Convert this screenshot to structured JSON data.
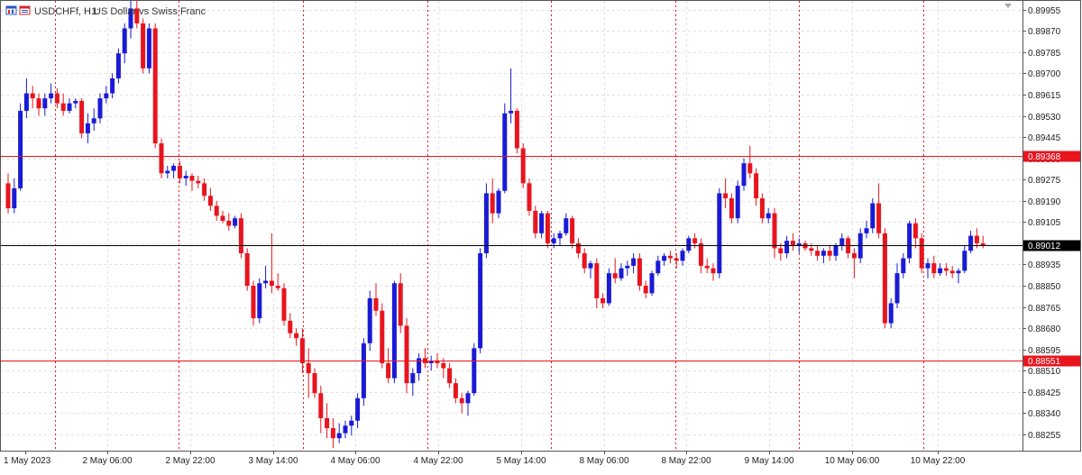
{
  "window": {
    "symbol_label": "USDCHFf, H1:",
    "description": "US Dollar vs Swiss Franc",
    "icon": "chart-window-icon"
  },
  "chart_data": {
    "type": "candlestick",
    "title": "USDCHFf, H1:  US Dollar vs Swiss Franc",
    "timeframe": "H1",
    "grid": true,
    "up_color": "#1a1ad6",
    "down_color": "#e8141e",
    "price_ticks": [
      "0.89955",
      "0.89870",
      "0.89785",
      "0.89700",
      "0.89615",
      "0.89530",
      "0.89445",
      "0.89360",
      "0.89275",
      "0.89190",
      "0.89105",
      "0.89020",
      "0.88935",
      "0.88850",
      "0.88765",
      "0.88680",
      "0.88595",
      "0.88510",
      "0.88425",
      "0.88340",
      "0.88255"
    ],
    "ylim": [
      0.8819,
      0.8999
    ],
    "time_labels": [
      "1 May 2023",
      "2 May 06:00",
      "2 May 22:00",
      "3 May 14:00",
      "4 May 06:00",
      "4 May 22:00",
      "5 May 14:00",
      "8 May 06:00",
      "8 May 22:00",
      "9 May 14:00",
      "10 May 06:00",
      "10 May 22:00"
    ],
    "session_separators": [
      "2 May",
      "3 May",
      "4 May",
      "5 May",
      "8 May",
      "9 May",
      "10 May",
      "11 May"
    ],
    "hlines": [
      {
        "value": 0.89368,
        "label": "0.89368",
        "color": "#e8141e",
        "label_bg": "#e8141e",
        "label_color": "#ffffff"
      },
      {
        "value": 0.89012,
        "label": "0.89012",
        "color": "#000000",
        "label_bg": "#000000",
        "label_color": "#ffffff"
      },
      {
        "value": 0.88551,
        "label": "0.88551",
        "color": "#e8141e",
        "label_bg": "#e8141e",
        "label_color": "#ffffff"
      }
    ],
    "candles": [
      [
        0.8926,
        0.893,
        0.8914,
        0.8916
      ],
      [
        0.8916,
        0.8928,
        0.8914,
        0.8924
      ],
      [
        0.8924,
        0.8958,
        0.8923,
        0.8955
      ],
      [
        0.8955,
        0.8968,
        0.8952,
        0.8962
      ],
      [
        0.8962,
        0.8965,
        0.8956,
        0.896
      ],
      [
        0.896,
        0.8962,
        0.8953,
        0.8956
      ],
      [
        0.8956,
        0.8962,
        0.8953,
        0.896
      ],
      [
        0.896,
        0.8966,
        0.8958,
        0.8962
      ],
      [
        0.8962,
        0.8964,
        0.8956,
        0.8958
      ],
      [
        0.8958,
        0.8962,
        0.8953,
        0.8955
      ],
      [
        0.8955,
        0.896,
        0.8954,
        0.8958
      ],
      [
        0.8958,
        0.896,
        0.8956,
        0.8959
      ],
      [
        0.8959,
        0.896,
        0.8944,
        0.8946
      ],
      [
        0.8946,
        0.8954,
        0.8942,
        0.895
      ],
      [
        0.895,
        0.8956,
        0.8947,
        0.8952
      ],
      [
        0.8952,
        0.8962,
        0.895,
        0.896
      ],
      [
        0.896,
        0.8965,
        0.8958,
        0.8962
      ],
      [
        0.8962,
        0.897,
        0.896,
        0.8968
      ],
      [
        0.8968,
        0.898,
        0.8966,
        0.8978
      ],
      [
        0.8978,
        0.899,
        0.8974,
        0.8988
      ],
      [
        0.8988,
        0.8999,
        0.8984,
        0.8996
      ],
      [
        0.8996,
        0.8999,
        0.8988,
        0.899
      ],
      [
        0.899,
        0.8992,
        0.897,
        0.8972
      ],
      [
        0.8972,
        0.899,
        0.897,
        0.8988
      ],
      [
        0.8988,
        0.899,
        0.894,
        0.8942
      ],
      [
        0.8942,
        0.8944,
        0.8928,
        0.893
      ],
      [
        0.893,
        0.8933,
        0.8928,
        0.8931
      ],
      [
        0.8931,
        0.8934,
        0.8928,
        0.8933
      ],
      [
        0.8933,
        0.8935,
        0.8926,
        0.8928
      ],
      [
        0.8928,
        0.8931,
        0.8925,
        0.8929
      ],
      [
        0.8929,
        0.893,
        0.8923,
        0.8927
      ],
      [
        0.8927,
        0.8929,
        0.8924,
        0.8926
      ],
      [
        0.8926,
        0.8928,
        0.8919,
        0.8921
      ],
      [
        0.8921,
        0.8924,
        0.8915,
        0.8917
      ],
      [
        0.8917,
        0.8919,
        0.8911,
        0.8913
      ],
      [
        0.8913,
        0.8915,
        0.891,
        0.8911
      ],
      [
        0.8911,
        0.8914,
        0.8907,
        0.8909
      ],
      [
        0.8909,
        0.8913,
        0.8908,
        0.8912
      ],
      [
        0.8912,
        0.8914,
        0.8896,
        0.8898
      ],
      [
        0.8898,
        0.89,
        0.8883,
        0.8885
      ],
      [
        0.8885,
        0.8887,
        0.8869,
        0.8872
      ],
      [
        0.8872,
        0.8888,
        0.887,
        0.8886
      ],
      [
        0.8886,
        0.8893,
        0.8884,
        0.8887
      ],
      [
        0.8887,
        0.8906,
        0.8882,
        0.8885
      ],
      [
        0.8885,
        0.889,
        0.8883,
        0.8884
      ],
      [
        0.8884,
        0.8886,
        0.8869,
        0.8871
      ],
      [
        0.8871,
        0.8874,
        0.8864,
        0.8866
      ],
      [
        0.8866,
        0.8868,
        0.8861,
        0.8864
      ],
      [
        0.8864,
        0.8868,
        0.885,
        0.8854
      ],
      [
        0.8854,
        0.886,
        0.884,
        0.885
      ],
      [
        0.885,
        0.8852,
        0.884,
        0.8842
      ],
      [
        0.8842,
        0.8845,
        0.8826,
        0.8832
      ],
      [
        0.8832,
        0.8838,
        0.8824,
        0.8828
      ],
      [
        0.8828,
        0.8832,
        0.882,
        0.8824
      ],
      [
        0.8824,
        0.883,
        0.8822,
        0.8826
      ],
      [
        0.8826,
        0.8831,
        0.8824,
        0.8829
      ],
      [
        0.8829,
        0.8833,
        0.8825,
        0.8831
      ],
      [
        0.8831,
        0.8842,
        0.8828,
        0.884
      ],
      [
        0.884,
        0.8864,
        0.8837,
        0.8862
      ],
      [
        0.8862,
        0.8883,
        0.8859,
        0.888
      ],
      [
        0.888,
        0.8886,
        0.8873,
        0.8875
      ],
      [
        0.8875,
        0.8878,
        0.8852,
        0.8854
      ],
      [
        0.8854,
        0.886,
        0.8846,
        0.8848
      ],
      [
        0.8848,
        0.8887,
        0.8846,
        0.8886
      ],
      [
        0.8886,
        0.889,
        0.8866,
        0.8869
      ],
      [
        0.8869,
        0.8872,
        0.8842,
        0.8846
      ],
      [
        0.8846,
        0.8852,
        0.8841,
        0.885
      ],
      [
        0.885,
        0.8858,
        0.8847,
        0.8856
      ],
      [
        0.8856,
        0.886,
        0.8852,
        0.8854
      ],
      [
        0.8854,
        0.8857,
        0.8851,
        0.8855
      ],
      [
        0.8855,
        0.8858,
        0.8852,
        0.8854
      ],
      [
        0.8854,
        0.8856,
        0.8848,
        0.8852
      ],
      [
        0.8852,
        0.8854,
        0.8844,
        0.8846
      ],
      [
        0.8846,
        0.8848,
        0.8838,
        0.884
      ],
      [
        0.884,
        0.8842,
        0.8834,
        0.8838
      ],
      [
        0.8838,
        0.8843,
        0.8833,
        0.8842
      ],
      [
        0.8842,
        0.8862,
        0.8841,
        0.886
      ],
      [
        0.886,
        0.89,
        0.8858,
        0.8898
      ],
      [
        0.8898,
        0.8926,
        0.8896,
        0.8922
      ],
      [
        0.8922,
        0.8928,
        0.891,
        0.8914
      ],
      [
        0.8914,
        0.8924,
        0.8912,
        0.8923
      ],
      [
        0.8923,
        0.8958,
        0.8922,
        0.8954
      ],
      [
        0.8954,
        0.8972,
        0.895,
        0.8955
      ],
      [
        0.8955,
        0.8956,
        0.8938,
        0.894
      ],
      [
        0.894,
        0.8942,
        0.8924,
        0.8926
      ],
      [
        0.8926,
        0.8928,
        0.8913,
        0.8915
      ],
      [
        0.8915,
        0.8917,
        0.8904,
        0.8906
      ],
      [
        0.8906,
        0.8915,
        0.8904,
        0.8914
      ],
      [
        0.8914,
        0.8915,
        0.89,
        0.8902
      ],
      [
        0.8902,
        0.8906,
        0.89,
        0.8904
      ],
      [
        0.8904,
        0.8907,
        0.8901,
        0.8906
      ],
      [
        0.8906,
        0.8914,
        0.8905,
        0.8912
      ],
      [
        0.8912,
        0.8913,
        0.89,
        0.8902
      ],
      [
        0.8902,
        0.8904,
        0.8896,
        0.8898
      ],
      [
        0.8898,
        0.89,
        0.889,
        0.8892
      ],
      [
        0.8892,
        0.8895,
        0.8888,
        0.8894
      ],
      [
        0.8894,
        0.8896,
        0.8876,
        0.888
      ],
      [
        0.888,
        0.8882,
        0.8876,
        0.8878
      ],
      [
        0.8878,
        0.8892,
        0.8877,
        0.889
      ],
      [
        0.889,
        0.8896,
        0.8886,
        0.8888
      ],
      [
        0.8888,
        0.8894,
        0.8887,
        0.8892
      ],
      [
        0.8892,
        0.8895,
        0.8889,
        0.8893
      ],
      [
        0.8893,
        0.8898,
        0.889,
        0.8896
      ],
      [
        0.8896,
        0.8898,
        0.8883,
        0.8885
      ],
      [
        0.8885,
        0.8887,
        0.888,
        0.8882
      ],
      [
        0.8882,
        0.8891,
        0.8881,
        0.889
      ],
      [
        0.889,
        0.8897,
        0.8889,
        0.8895
      ],
      [
        0.8895,
        0.8898,
        0.8893,
        0.8897
      ],
      [
        0.8897,
        0.8899,
        0.8894,
        0.8896
      ],
      [
        0.8896,
        0.8898,
        0.8892,
        0.8895
      ],
      [
        0.8895,
        0.89,
        0.8893,
        0.8899
      ],
      [
        0.8899,
        0.8905,
        0.8898,
        0.8904
      ],
      [
        0.8904,
        0.8906,
        0.89,
        0.8902
      ],
      [
        0.8902,
        0.8904,
        0.889,
        0.8893
      ],
      [
        0.8893,
        0.8896,
        0.889,
        0.8892
      ],
      [
        0.8892,
        0.8894,
        0.8887,
        0.889
      ],
      [
        0.889,
        0.8924,
        0.8888,
        0.8922
      ],
      [
        0.8922,
        0.8928,
        0.8916,
        0.892
      ],
      [
        0.892,
        0.8922,
        0.891,
        0.8912
      ],
      [
        0.8912,
        0.8927,
        0.891,
        0.8925
      ],
      [
        0.8925,
        0.8936,
        0.8923,
        0.8934
      ],
      [
        0.8934,
        0.8941,
        0.8928,
        0.893
      ],
      [
        0.893,
        0.8932,
        0.8917,
        0.892
      ],
      [
        0.892,
        0.8922,
        0.891,
        0.8912
      ],
      [
        0.8912,
        0.8916,
        0.891,
        0.8914
      ],
      [
        0.8914,
        0.8916,
        0.8896,
        0.89
      ],
      [
        0.89,
        0.8902,
        0.8895,
        0.8898
      ],
      [
        0.8898,
        0.8905,
        0.8896,
        0.8903
      ],
      [
        0.8903,
        0.8906,
        0.8899,
        0.8901
      ],
      [
        0.8901,
        0.8904,
        0.8898,
        0.8902
      ],
      [
        0.8902,
        0.8903,
        0.8899,
        0.89
      ],
      [
        0.89,
        0.8902,
        0.8897,
        0.8899
      ],
      [
        0.8899,
        0.8901,
        0.8895,
        0.8897
      ],
      [
        0.8897,
        0.89,
        0.8894,
        0.8899
      ],
      [
        0.8899,
        0.8901,
        0.8895,
        0.8897
      ],
      [
        0.8897,
        0.8902,
        0.8895,
        0.8901
      ],
      [
        0.8901,
        0.8906,
        0.8899,
        0.8904
      ],
      [
        0.8904,
        0.8905,
        0.8896,
        0.8898
      ],
      [
        0.8898,
        0.89,
        0.8888,
        0.8896
      ],
      [
        0.8896,
        0.8908,
        0.8894,
        0.8906
      ],
      [
        0.8906,
        0.8911,
        0.8904,
        0.8908
      ],
      [
        0.8908,
        0.892,
        0.8906,
        0.8918
      ],
      [
        0.8918,
        0.8926,
        0.8904,
        0.8906
      ],
      [
        0.8906,
        0.8908,
        0.8868,
        0.887
      ],
      [
        0.887,
        0.888,
        0.8868,
        0.8878
      ],
      [
        0.8878,
        0.8894,
        0.8876,
        0.889
      ],
      [
        0.889,
        0.8898,
        0.8888,
        0.8896
      ],
      [
        0.8896,
        0.8911,
        0.8894,
        0.891
      ],
      [
        0.891,
        0.8912,
        0.89,
        0.8904
      ],
      [
        0.8904,
        0.8906,
        0.889,
        0.8892
      ],
      [
        0.8892,
        0.8896,
        0.8888,
        0.8894
      ],
      [
        0.8894,
        0.8897,
        0.8888,
        0.889
      ],
      [
        0.889,
        0.8894,
        0.8889,
        0.8892
      ],
      [
        0.8892,
        0.8894,
        0.8889,
        0.8891
      ],
      [
        0.8891,
        0.8893,
        0.8888,
        0.889
      ],
      [
        0.889,
        0.8892,
        0.8886,
        0.8891
      ],
      [
        0.8891,
        0.8901,
        0.889,
        0.8899
      ],
      [
        0.8899,
        0.8907,
        0.8898,
        0.8905
      ],
      [
        0.8905,
        0.8908,
        0.89,
        0.8902
      ],
      [
        0.8902,
        0.8905,
        0.89,
        0.8901
      ]
    ]
  }
}
